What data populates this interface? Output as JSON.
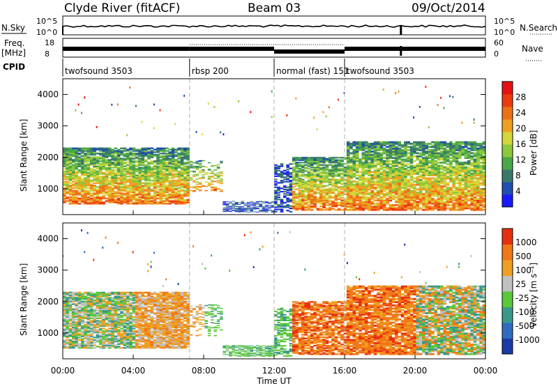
{
  "header": {
    "station": "Clyde River (fitACF)",
    "beam": "Beam 03",
    "date": "09/Oct/2014"
  },
  "summary": {
    "nsky_label": "N.Sky",
    "nsearch_label": "N.Search",
    "freq_label_top": "Freq.",
    "freq_label_unit": "[MHz]",
    "nave_label": "Nave",
    "cpid_label": "CPID",
    "left_ticks_top": [
      "10^5",
      "10^0"
    ],
    "right_ticks_top": [
      "10^5",
      "10^0"
    ],
    "left_ticks_freq": [
      "18",
      "8"
    ],
    "right_ticks_nave": [
      "60",
      "0"
    ]
  },
  "cpid": [
    {
      "label": "twofsound 3503",
      "start": 0.0
    },
    {
      "label": "rbsp 200",
      "start": 7.2
    },
    {
      "label": "normal (fast) 151",
      "start": 12.0
    },
    {
      "label": "twofsound 3503",
      "start": 16.0
    }
  ],
  "chart_data": [
    {
      "type": "heatmap",
      "name": "power",
      "ylabel": "Slant Range [km]",
      "xlim": [
        0,
        24
      ],
      "ylim": [
        180,
        4500
      ],
      "yticks": [
        "1000",
        "2000",
        "3000",
        "4000"
      ],
      "colorbar": {
        "label": "Power [dB]",
        "ticks": [
          "4",
          "8",
          "12",
          "16",
          "20",
          "24",
          "28"
        ],
        "colors": [
          "#1a1aff",
          "#1f4fb0",
          "#3a7a6a",
          "#4aa84a",
          "#8cc83c",
          "#d6d63a",
          "#f0a020",
          "#f07018",
          "#ee3a10",
          "#e81010"
        ]
      }
    },
    {
      "type": "heatmap",
      "name": "velocity",
      "ylabel": "Slant Range [km]",
      "xlim": [
        0,
        24
      ],
      "ylim": [
        180,
        4500
      ],
      "yticks": [
        "1000",
        "2000",
        "3000",
        "4000"
      ],
      "colorbar": {
        "label": "Velocity [m s⁻¹]",
        "ticks": [
          "1000",
          "500",
          "100",
          "25",
          "-25",
          "-100",
          "-500",
          "-1000"
        ],
        "colors": [
          "#1a3aa8",
          "#2e6cc0",
          "#3a9a8a",
          "#5ac83a",
          "#c0c0c0",
          "#f0a020",
          "#f07818",
          "#e83010"
        ]
      }
    }
  ],
  "xaxis": {
    "ticks": [
      "00:00",
      "04:00",
      "08:00",
      "12:00",
      "16:00",
      "20:00",
      "00:00"
    ],
    "label": "Time UT"
  },
  "colors": {
    "axis": "#000000",
    "divider": "#b0b0b0"
  }
}
